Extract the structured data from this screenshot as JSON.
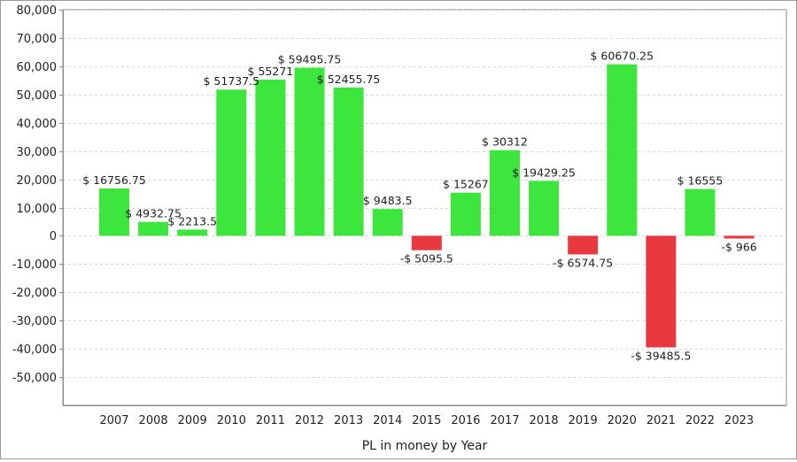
{
  "chart_data": {
    "type": "bar",
    "xlabel": "PL in money by Year",
    "ylabel": "",
    "title": "",
    "ylim": [
      -60000,
      80000
    ],
    "yticks": [
      80000,
      70000,
      60000,
      50000,
      40000,
      30000,
      20000,
      10000,
      0,
      -10000,
      -20000,
      -30000,
      -40000,
      -50000
    ],
    "ytick_labels": [
      "80,000",
      "70,000",
      "60,000",
      "50,000",
      "40,000",
      "30,000",
      "20,000",
      "10,000",
      "0",
      "-10,000",
      "-20,000",
      "-30,000",
      "-40,000",
      "-50,000"
    ],
    "categories": [
      "2007",
      "2008",
      "2009",
      "2010",
      "2011",
      "2012",
      "2013",
      "2014",
      "2015",
      "2016",
      "2017",
      "2018",
      "2019",
      "2020",
      "2021",
      "2022",
      "2023"
    ],
    "values": [
      16756.75,
      4932.75,
      2213.5,
      51737.5,
      55271,
      59495.75,
      52455.75,
      9483.5,
      -5095.5,
      15267,
      30312,
      19429.25,
      -6574.75,
      60670.25,
      -39485.5,
      16555,
      -966
    ],
    "data_labels": [
      "$ 16756.75",
      "$ 4932.75",
      "$ 2213.5",
      "$ 51737.5",
      "$ 55271",
      "$ 59495.75",
      "$ 52455.75",
      "$ 9483.5",
      "-$ 5095.5",
      "$ 15267",
      "$ 30312",
      "$ 19429.25",
      "-$ 6574.75",
      "$ 60670.25",
      "-$ 39485.5",
      "$ 16555",
      "-$ 966"
    ],
    "grid": true,
    "colors": {
      "positive": "#3de63d",
      "negative": "#e8393f",
      "grid": "#d8d8d8",
      "axis": "#8a8a8a"
    }
  }
}
